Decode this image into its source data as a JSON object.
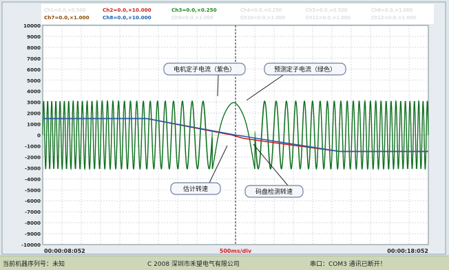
{
  "colors": {
    "purple_current": "#2a8f2a",
    "green_current": "#0f6e21",
    "estimated_speed": "#1f5fa8",
    "encoder_speed": "#d02020",
    "cursor": "#222222",
    "grid": "#b9c4c8"
  },
  "channels": [
    {
      "label": "Ch1=0.0,×0.500",
      "color": "#c8ccd0",
      "faded": true
    },
    {
      "label": "Ch2=0.0,×10.000",
      "color": "#d02020",
      "faded": false
    },
    {
      "label": "Ch3=0.0,×0.250",
      "color": "#1a8a1a",
      "faded": false
    },
    {
      "label": "Ch4=0.0,×0.250",
      "color": "#c8ccd0",
      "faded": true
    },
    {
      "label": "Ch5=0.0,×0.500",
      "color": "#c8ccd0",
      "faded": true
    },
    {
      "label": "Ch6=0.0,×1.000",
      "color": "#c8ccd0",
      "faded": true
    },
    {
      "label": "Ch7=0.0,×1.000",
      "color": "#8a4a00",
      "faded": false
    },
    {
      "label": "Ch8=0.0,×10.000",
      "color": "#1f5fa8",
      "faded": false
    },
    {
      "label": "Ch9=0.0,×1.000",
      "color": "#c8ccd0",
      "faded": true
    },
    {
      "label": "Ch10=0.0,×1.000",
      "color": "#c8ccd0",
      "faded": true
    },
    {
      "label": "Ch11=0.0,×1.000",
      "color": "#c8ccd0",
      "faded": true
    },
    {
      "label": "Ch12=0.0,×1.000",
      "color": "#c8ccd0",
      "faded": true
    }
  ],
  "chart_data": {
    "type": "line",
    "y_ticks": [
      10000,
      9000,
      8000,
      7000,
      6000,
      5000,
      4000,
      3000,
      2000,
      1000,
      0,
      -1000,
      -2000,
      -3000,
      -4000,
      -5000,
      -6000,
      -7000,
      -8000,
      -9000,
      -10000
    ],
    "ylim": [
      -10000,
      10000
    ],
    "x_start_label": "00:00:08:052",
    "x_end_label": "00:00:18:052",
    "x_scale_label": "500ms/div",
    "cursor_x_fraction": 0.5,
    "series": [
      {
        "name": "电机定子电流（紫色）",
        "kind": "current_motor",
        "amplitude": 3100,
        "cycles_left": 28,
        "cycles_right": 27
      },
      {
        "name": "预测定子电流（绿色）",
        "kind": "current_predicted",
        "amplitude": 3000
      },
      {
        "name": "估计转速",
        "kind": "speed_estimated",
        "x": [
          0,
          0.27,
          0.5,
          0.77,
          1
        ],
        "y": [
          1500,
          1500,
          0,
          -1500,
          -1500
        ]
      },
      {
        "name": "码盘检测转速",
        "kind": "speed_encoder",
        "x": [
          0,
          0.27,
          0.49,
          0.52,
          0.6,
          0.77,
          1
        ],
        "y": [
          1500,
          1500,
          0,
          -300,
          -700,
          -1500,
          -1500
        ]
      }
    ],
    "annotations": [
      {
        "text": "电机定子电流（紫色）",
        "target": "current_motor"
      },
      {
        "text": "预测定子电流（绿色）",
        "target": "current_predicted"
      },
      {
        "text": "估计转速",
        "target": "speed_estimated"
      },
      {
        "text": "码盘检测转速",
        "target": "speed_encoder"
      }
    ]
  },
  "status": {
    "serial": "当前机器序列号：未知",
    "copyright": "C 2008 深圳市禾望电气有限公司",
    "port": "串口：COM3 通讯已断开！"
  }
}
